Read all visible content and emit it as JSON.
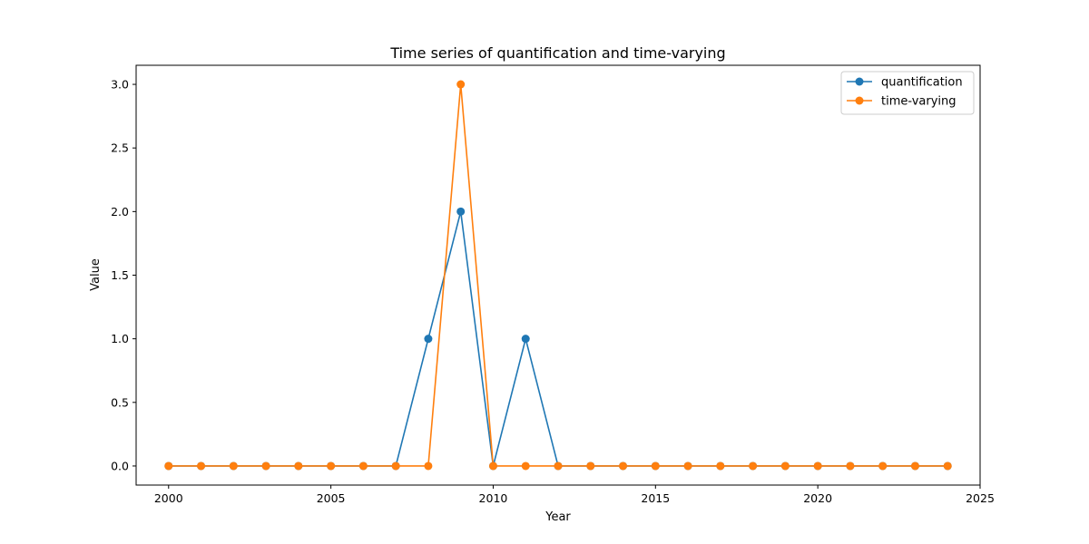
{
  "chart_data": {
    "type": "line",
    "title": "Time series of quantification and time-varying",
    "xlabel": "Year",
    "ylabel": "Value",
    "xlim": [
      1999,
      2025
    ],
    "ylim": [
      -0.15,
      3.15
    ],
    "x_ticks": [
      2000,
      2005,
      2010,
      2015,
      2020,
      2025
    ],
    "y_ticks": [
      0.0,
      0.5,
      1.0,
      1.5,
      2.0,
      2.5,
      3.0
    ],
    "x_tick_labels": [
      "2000",
      "2005",
      "2010",
      "2015",
      "2020",
      "2025"
    ],
    "y_tick_labels": [
      "0.0",
      "0.5",
      "1.0",
      "1.5",
      "2.0",
      "2.5",
      "3.0"
    ],
    "grid": false,
    "legend_position": "top-right",
    "x": [
      2000,
      2001,
      2002,
      2003,
      2004,
      2005,
      2006,
      2007,
      2008,
      2009,
      2010,
      2011,
      2012,
      2013,
      2014,
      2015,
      2016,
      2017,
      2018,
      2019,
      2020,
      2021,
      2022,
      2023,
      2024
    ],
    "series": [
      {
        "name": "quantification",
        "color": "#1f77b4",
        "values": [
          0,
          0,
          0,
          0,
          0,
          0,
          0,
          0,
          1,
          2,
          0,
          1,
          0,
          0,
          0,
          0,
          0,
          0,
          0,
          0,
          0,
          0,
          0,
          0,
          0
        ]
      },
      {
        "name": "time-varying",
        "color": "#ff7f0e",
        "values": [
          0,
          0,
          0,
          0,
          0,
          0,
          0,
          0,
          0,
          3,
          0,
          0,
          0,
          0,
          0,
          0,
          0,
          0,
          0,
          0,
          0,
          0,
          0,
          0,
          0
        ]
      }
    ]
  }
}
